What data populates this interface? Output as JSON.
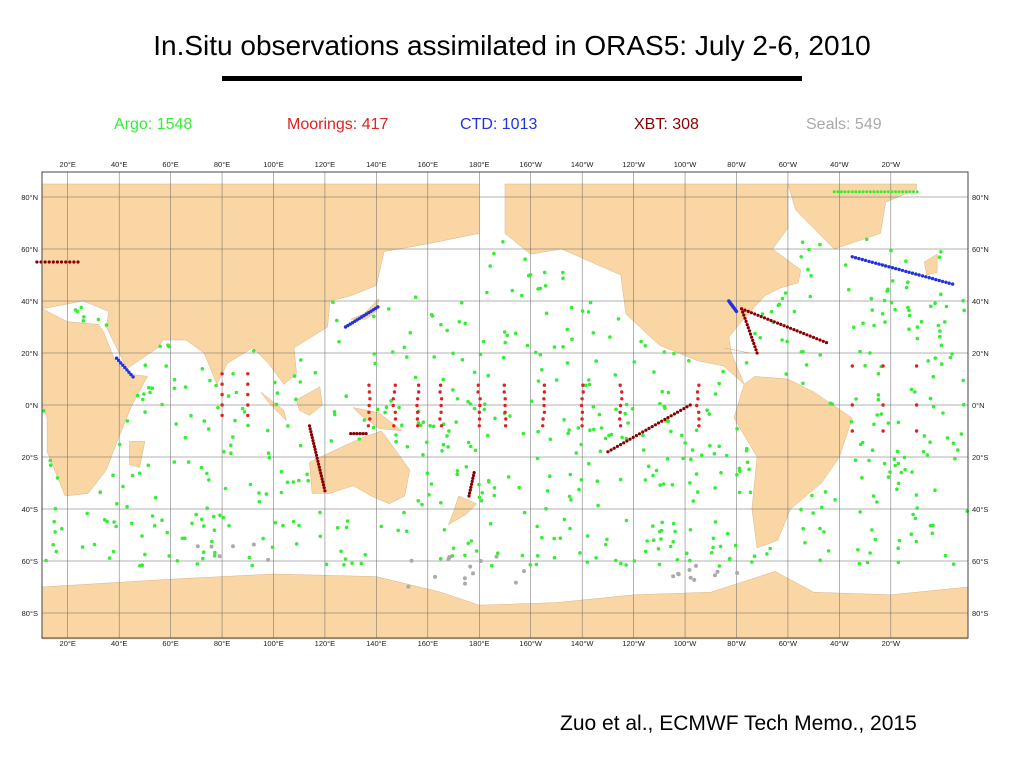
{
  "slide": {
    "title": "In.Situ observations assimilated in ORAS5: July 2-6, 2010",
    "citation": "Zuo et al., ECMWF Tech Memo., 2015"
  },
  "legend": [
    {
      "id": "argo",
      "label": "Argo: 1548",
      "color": "#33ee33"
    },
    {
      "id": "moorings",
      "label": "Moorings: 417",
      "color": "#dd2222"
    },
    {
      "id": "ctd",
      "label": "CTD: 1013",
      "color": "#2233dd"
    },
    {
      "id": "xbt",
      "label": "XBT: 308",
      "color": "#880000"
    },
    {
      "id": "seals",
      "label": "Seals: 549",
      "color": "#aaaaaa"
    }
  ],
  "map": {
    "ocean_color": "#ffffff",
    "land_color": "#fad6a5",
    "lon_labels": [
      "20°E",
      "40°E",
      "60°E",
      "80°E",
      "100°E",
      "120°E",
      "140°E",
      "160°E",
      "180°E",
      "160°W",
      "140°W",
      "120°W",
      "100°W",
      "80°W",
      "60°W",
      "40°W",
      "20°W"
    ],
    "lat_labels_left": [
      "80°N",
      "60°N",
      "40°N",
      "20°N",
      "0°N",
      "20°S",
      "40°S",
      "60°S",
      "80°S"
    ],
    "lat_labels_right": [
      "80°N",
      "60°N",
      "40°N",
      "20°N",
      "0°N",
      "20°S",
      "40°S",
      "60°S",
      "80°S"
    ]
  }
}
